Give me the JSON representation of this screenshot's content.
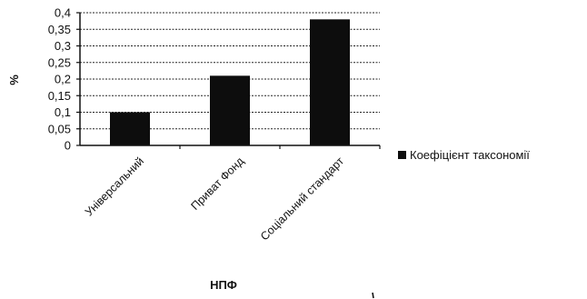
{
  "chart_data": {
    "type": "bar",
    "categories": [
      "Універсальний",
      "Приват Фонд",
      "Соціальний стандарт"
    ],
    "series": [
      {
        "name": "Коефіцієнт таксономії",
        "values": [
          0.1,
          0.21,
          0.38
        ],
        "color": "#0d0d0d"
      }
    ],
    "xlabel": "НПФ",
    "ylabel": "%",
    "ylim": [
      0,
      0.4
    ],
    "yticks": [
      "0",
      "0,05",
      "0,1",
      "0,15",
      "0,2",
      "0,25",
      "0,3",
      "0,35",
      "0,4"
    ],
    "grid": true,
    "legend_position": "right"
  }
}
